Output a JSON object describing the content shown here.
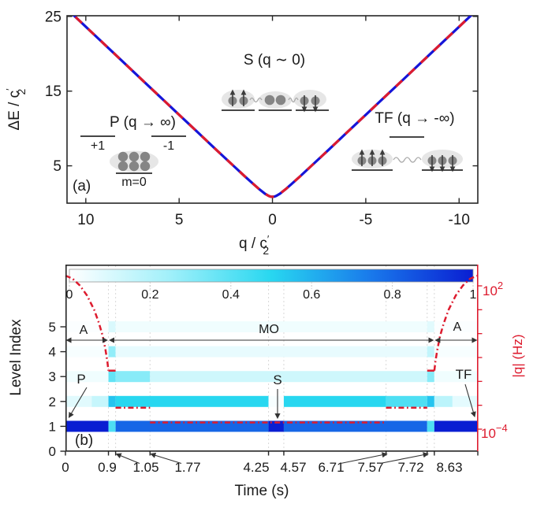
{
  "colors": {
    "accent_red": "#dd1b2e",
    "curve_blue": "#1515d8",
    "axis_dark": "#262626",
    "grid": "#d8d8d8"
  },
  "panel_a": {
    "label": "(a)",
    "ylabel": {
      "main": "ΔE / c",
      "prime": "′",
      "sub": "2"
    },
    "xlabel": {
      "main": "q / c",
      "prime": "′",
      "sub": "2"
    },
    "regions": {
      "s": "S (q ∼ 0)",
      "p": "P (q → ∞)",
      "p_plus": "+1",
      "p_minus": "-1",
      "p_m0": "m=0",
      "tf": "TF (q → -∞)"
    }
  },
  "panel_b": {
    "label": "(b)",
    "ylabel": "Level Index",
    "xlabel": "Time (s)",
    "right_axis": {
      "label": "|q| (Hz)",
      "top": {
        "base": "10",
        "exp": "2"
      },
      "bottom": {
        "base": "10",
        "exp": "−4"
      }
    },
    "regions": {
      "left": "A",
      "middle": "MO",
      "right": "A"
    },
    "markers": {
      "p": "P",
      "s": "S",
      "tf": "TF"
    }
  },
  "chart_data": [
    {
      "panel": "a",
      "type": "line",
      "title": "",
      "xlabel": "q / c2'",
      "ylabel": "dE / c2'",
      "x_reversed": true,
      "xlim": [
        11,
        -11
      ],
      "ylim": [
        0,
        25.1
      ],
      "xticks": [
        10,
        5,
        0,
        -5,
        -10
      ],
      "yticks": [
        25,
        15,
        5
      ],
      "grid": false,
      "series": [
        {
          "name": "energy gap (blue solid)",
          "color": "#1515d8",
          "style": "solid"
        },
        {
          "name": "energy gap overlay (red dashed)",
          "color": "#dd1b2e",
          "style": "dashed"
        }
      ],
      "curve": {
        "q": [
          -11,
          -10,
          -9,
          -8,
          -7,
          -6,
          -5,
          -4,
          -3,
          -2,
          -1.5,
          -1,
          -0.7,
          -0.4,
          -0.2,
          -0.1,
          0,
          0.1,
          0.2,
          0.4,
          0.7,
          1,
          1.5,
          2,
          3,
          4,
          5,
          6,
          7,
          8,
          9,
          10,
          11
        ],
        "dE": [
          25.97,
          23.62,
          21.26,
          18.9,
          16.54,
          14.19,
          11.83,
          9.48,
          7.13,
          4.8,
          3.64,
          2.51,
          1.86,
          1.27,
          0.97,
          0.88,
          0.85,
          0.88,
          0.97,
          1.27,
          1.86,
          2.51,
          3.64,
          4.8,
          7.13,
          9.48,
          11.83,
          14.19,
          16.54,
          18.9,
          21.26,
          23.62,
          25.97
        ]
      },
      "annotations": [
        "S (q ∼ 0)",
        "P (q → ∞)",
        "TF (q → -∞)",
        "+1",
        "-1",
        "m=0",
        "(a)"
      ]
    },
    {
      "panel": "b",
      "type": "heatmap",
      "xlabel": "Time (s)",
      "ylabel": "Level Index",
      "time_axis": {
        "lim": [
          0,
          8.63
        ],
        "ticks": [
          0,
          0.9,
          1.05,
          1.77,
          4.25,
          4.57,
          6.71,
          7.57,
          7.72,
          8.63
        ]
      },
      "level_axis": {
        "lim": [
          0,
          7.5
        ],
        "ticks": [
          0,
          1,
          2,
          3,
          4,
          5
        ]
      },
      "colorbar": {
        "range": [
          0,
          1
        ],
        "ticks": [
          0,
          0.2,
          0.4,
          0.6,
          0.8,
          1
        ],
        "position": "top"
      },
      "colormap_stops": [
        [
          0,
          "#ffffff"
        ],
        [
          0.25,
          "#a0f0fa"
        ],
        [
          0.5,
          "#28d7f0"
        ],
        [
          0.75,
          "#1978eb"
        ],
        [
          1,
          "#0a1ed2"
        ]
      ],
      "gridline_times": [
        0.9,
        1.05,
        1.77,
        4.25,
        4.57,
        6.71,
        7.57,
        7.72
      ],
      "regions": [
        {
          "label": "A",
          "t0": 0,
          "t1": 0.9
        },
        {
          "label": "MO",
          "t0": 0.9,
          "t1": 7.72
        },
        {
          "label": "A",
          "t0": 7.72,
          "t1": 8.63
        }
      ],
      "population_segments": {
        "level1": [
          [
            0,
            0.9,
            1.0
          ],
          [
            0.9,
            1.05,
            0.42
          ],
          [
            1.05,
            4.25,
            0.8
          ],
          [
            4.25,
            4.57,
            1.0
          ],
          [
            4.57,
            7.57,
            0.8
          ],
          [
            7.57,
            7.72,
            0.42
          ],
          [
            7.72,
            8.63,
            1.0
          ]
        ],
        "level2": [
          [
            0,
            0.55,
            0.08
          ],
          [
            0.55,
            0.9,
            0.15
          ],
          [
            0.9,
            1.05,
            0.55
          ],
          [
            1.05,
            4.25,
            0.5
          ],
          [
            4.25,
            4.57,
            0.02
          ],
          [
            4.57,
            6.71,
            0.5
          ],
          [
            6.71,
            7.57,
            0.42
          ],
          [
            7.57,
            7.72,
            0.55
          ],
          [
            7.72,
            8.1,
            0.18
          ],
          [
            8.1,
            8.63,
            0.07
          ]
        ],
        "level3": [
          [
            0,
            0.9,
            0.04
          ],
          [
            0.9,
            1.05,
            0.38
          ],
          [
            1.05,
            1.77,
            0.3
          ],
          [
            1.77,
            7.57,
            0.13
          ],
          [
            7.57,
            7.72,
            0.3
          ],
          [
            7.72,
            8.63,
            0.04
          ]
        ],
        "level4": [
          [
            0,
            0.9,
            0.02
          ],
          [
            0.9,
            1.05,
            0.28
          ],
          [
            1.05,
            7.57,
            0.06
          ],
          [
            7.57,
            7.72,
            0.16
          ],
          [
            7.72,
            8.63,
            0.02
          ]
        ],
        "level5": [
          [
            0,
            0.9,
            0.01
          ],
          [
            0.9,
            1.05,
            0.1
          ],
          [
            1.05,
            7.57,
            0.04
          ],
          [
            7.57,
            7.72,
            0.08
          ],
          [
            7.72,
            8.63,
            0.01
          ]
        ]
      },
      "q_line": {
        "unit": "Hz",
        "scale": "log",
        "lim_log10": [
          -4,
          2
        ],
        "color": "#dd1b2e",
        "segments": [
          {
            "type": "curve",
            "points": [
              [
                0,
                2.43
              ],
              [
                0.15,
                2.3
              ],
              [
                0.3,
                2.02
              ],
              [
                0.45,
                1.6
              ],
              [
                0.6,
                1.0
              ],
              [
                0.7,
                0.45
              ],
              [
                0.78,
                -0.1
              ],
              [
                0.84,
                -0.7
              ],
              [
                0.88,
                -1.2
              ],
              [
                0.9,
                -1.55
              ]
            ]
          },
          {
            "type": "flat",
            "t0": 0.9,
            "t1": 1.05,
            "log10_q": -1.55
          },
          {
            "type": "flat",
            "t0": 1.05,
            "t1": 1.77,
            "log10_q": -3.1
          },
          {
            "type": "flat",
            "t0": 1.77,
            "t1": 6.71,
            "log10_q": -3.72
          },
          {
            "type": "flat",
            "t0": 6.71,
            "t1": 7.57,
            "log10_q": -3.1
          },
          {
            "type": "flat",
            "t0": 7.57,
            "t1": 7.72,
            "log10_q": -1.55
          },
          {
            "type": "curve",
            "points": [
              [
                7.72,
                -1.55
              ],
              [
                7.74,
                -1.2
              ],
              [
                7.78,
                -0.7
              ],
              [
                7.84,
                -0.1
              ],
              [
                7.92,
                0.45
              ],
              [
                8.02,
                1.0
              ],
              [
                8.17,
                1.6
              ],
              [
                8.32,
                2.02
              ],
              [
                8.47,
                2.3
              ],
              [
                8.63,
                2.43
              ]
            ]
          }
        ]
      }
    }
  ]
}
